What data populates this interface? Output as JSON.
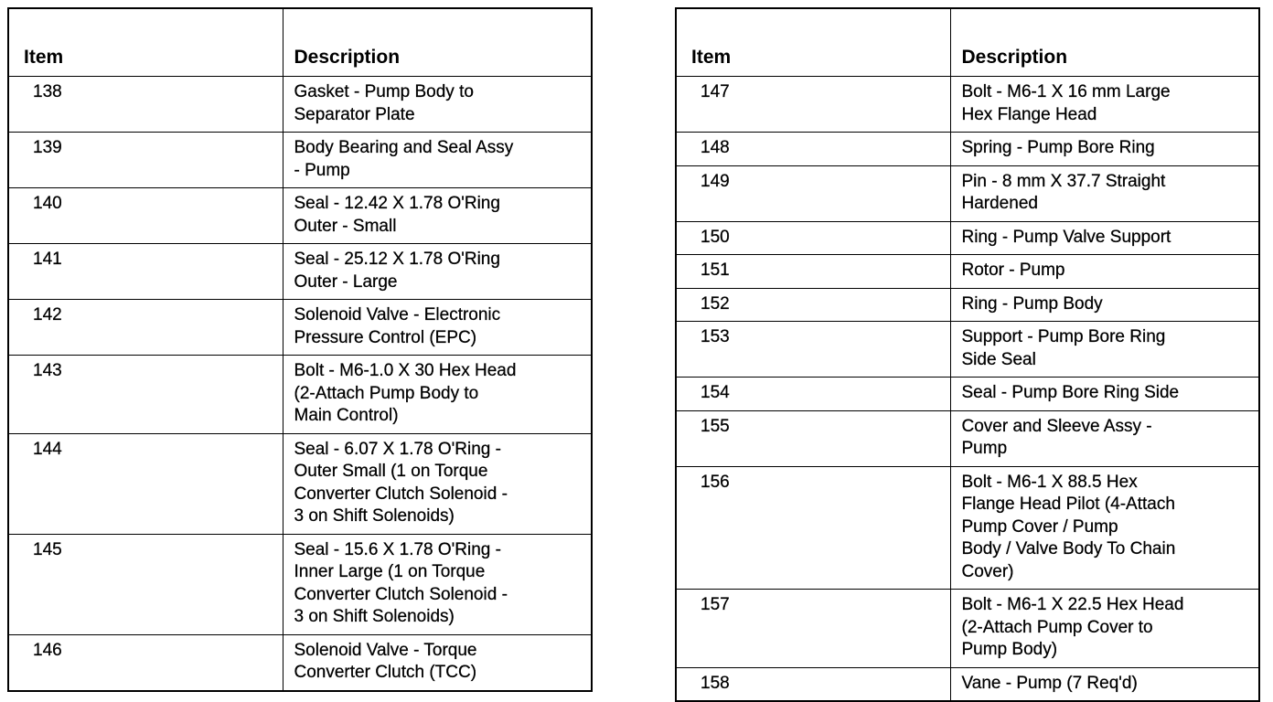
{
  "headers": {
    "item": "Item",
    "description": "Description"
  },
  "left_rows": [
    {
      "item": "138",
      "description": "Gasket - Pump Body to\nSeparator Plate"
    },
    {
      "item": "139",
      "description": "Body Bearing and Seal Assy\n- Pump"
    },
    {
      "item": "140",
      "description": "Seal - 12.42 X 1.78 O'Ring\nOuter - Small"
    },
    {
      "item": "141",
      "description": "Seal - 25.12 X 1.78 O'Ring\nOuter - Large"
    },
    {
      "item": "142",
      "description": "Solenoid Valve - Electronic\nPressure Control (EPC)"
    },
    {
      "item": "143",
      "description": "Bolt - M6-1.0 X 30 Hex Head\n(2-Attach Pump Body to\nMain Control)"
    },
    {
      "item": "144",
      "description": "Seal - 6.07 X 1.78 O'Ring -\nOuter Small (1 on Torque\nConverter Clutch Solenoid -\n3 on Shift Solenoids)"
    },
    {
      "item": "145",
      "description": "Seal - 15.6 X 1.78 O'Ring -\nInner Large (1 on Torque\nConverter Clutch Solenoid -\n3 on Shift Solenoids)"
    },
    {
      "item": "146",
      "description": "Solenoid Valve - Torque\nConverter Clutch (TCC)"
    }
  ],
  "right_rows": [
    {
      "item": "147",
      "description": "Bolt - M6-1 X 16 mm Large\nHex Flange Head"
    },
    {
      "item": "148",
      "description": "Spring - Pump Bore Ring"
    },
    {
      "item": "149",
      "description": "Pin - 8 mm X 37.7 Straight\nHardened"
    },
    {
      "item": "150",
      "description": "Ring - Pump Valve Support"
    },
    {
      "item": "151",
      "description": "Rotor - Pump"
    },
    {
      "item": "152",
      "description": "Ring - Pump Body"
    },
    {
      "item": "153",
      "description": "Support - Pump Bore Ring\nSide Seal"
    },
    {
      "item": "154",
      "description": "Seal - Pump Bore Ring Side"
    },
    {
      "item": "155",
      "description": "Cover and Sleeve Assy -\nPump"
    },
    {
      "item": "156",
      "description": "Bolt - M6-1 X 88.5 Hex\nFlange Head Pilot (4-Attach\nPump Cover / Pump\nBody / Valve Body To Chain\nCover)"
    },
    {
      "item": "157",
      "description": "Bolt - M6-1 X 22.5 Hex Head\n(2-Attach Pump Cover to\nPump Body)"
    },
    {
      "item": "158",
      "description": "Vane - Pump (7 Req'd)"
    }
  ]
}
